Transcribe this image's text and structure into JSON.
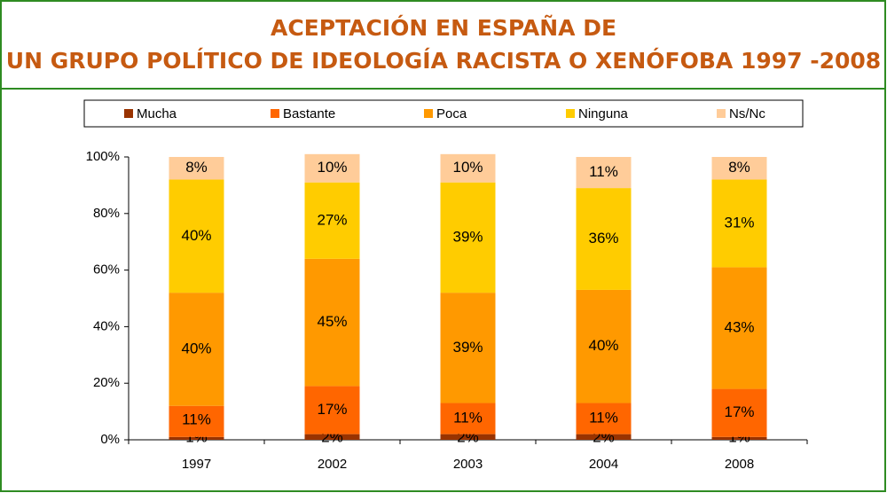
{
  "chart_data": {
    "type": "stacked_bar",
    "title": "ACEPTACIÓN EN ESPAÑA DE UN GRUPO POLÍTICO DE IDEOLOGÍA RACISTA O XENÓFOBA 1997 -2008",
    "categories": [
      "1997",
      "2002",
      "2003",
      "2004",
      "2008"
    ],
    "series": [
      {
        "name": "Mucha",
        "color": "#993300",
        "values": [
          1,
          2,
          2,
          2,
          1
        ],
        "value_labels": [
          "1%",
          "2%",
          "2%",
          "2%",
          "1%"
        ]
      },
      {
        "name": "Bastante",
        "color": "#ff6600",
        "values": [
          11,
          17,
          11,
          11,
          17
        ],
        "value_labels": [
          "11%",
          "17%",
          "11%",
          "11%",
          "17%"
        ]
      },
      {
        "name": "Poca",
        "color": "#ff9900",
        "values": [
          40,
          45,
          39,
          40,
          43
        ],
        "value_labels": [
          "40%",
          "45%",
          "39%",
          "40%",
          "43%"
        ]
      },
      {
        "name": "Ninguna",
        "color": "#ffcc00",
        "values": [
          40,
          27,
          39,
          36,
          31
        ],
        "value_labels": [
          "40%",
          "27%",
          "39%",
          "36%",
          "31%"
        ]
      },
      {
        "name": "Ns/Nc",
        "color": "#ffcc99",
        "values": [
          8,
          10,
          10,
          11,
          8
        ],
        "value_labels": [
          "8%",
          "10%",
          "10%",
          "11%",
          "8%"
        ]
      }
    ],
    "ylim": [
      0,
      100
    ],
    "yticks": [
      {
        "value": 0,
        "label": "0%"
      },
      {
        "value": 20,
        "label": "20%"
      },
      {
        "value": 40,
        "label": "40%"
      },
      {
        "value": 60,
        "label": "60%"
      },
      {
        "value": 80,
        "label": "80%"
      },
      {
        "value": 100,
        "label": "100%"
      }
    ],
    "legend": "top"
  }
}
